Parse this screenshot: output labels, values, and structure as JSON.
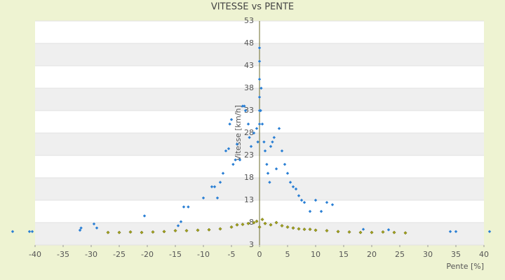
{
  "chart_data": {
    "type": "scatter",
    "title": "VITESSE vs PENTE",
    "xlabel": "Pente [%]",
    "ylabel": "Vitesse [km/h]",
    "xlim": [
      -40,
      40
    ],
    "xticks": [
      -40,
      -35,
      -30,
      -25,
      -20,
      -15,
      -10,
      -5,
      0,
      5,
      10,
      15,
      20,
      25,
      30,
      35,
      40
    ],
    "ylim": [
      3,
      53
    ],
    "yticks": [
      3,
      8,
      13,
      18,
      23,
      28,
      33,
      38,
      43,
      48,
      53
    ],
    "grid": true,
    "series": [
      {
        "color": "#2a7fd4",
        "x": [
          -44,
          -41,
          -40.5,
          -32,
          -31.8,
          -29.5,
          -29,
          -20.5,
          -14.5,
          -14,
          -13.5,
          -12.7,
          -10,
          -8.5,
          -8,
          -7.5,
          -7,
          -6.5,
          -6,
          -5.5,
          -5.3,
          -5,
          -4.7,
          -4.3,
          -4,
          -3.5,
          -3,
          -2.7,
          -2.5,
          -2,
          -1.8,
          -1.5,
          -1,
          -0.5,
          -0.3,
          0,
          0,
          0,
          0,
          0,
          0,
          0.2,
          0.3,
          0.5,
          0.8,
          1,
          1.3,
          1.5,
          1.8,
          2,
          2.3,
          2.6,
          3,
          3.5,
          4,
          4.5,
          5,
          5.5,
          6,
          6.5,
          7,
          7.5,
          8,
          9,
          10,
          11,
          12,
          13,
          18.5,
          23,
          34,
          35,
          41
        ],
        "y": [
          6,
          6,
          6,
          6.3,
          6.8,
          7.7,
          6.8,
          9.5,
          7.3,
          8.2,
          11.5,
          11.5,
          13.5,
          16,
          16,
          13.5,
          17,
          19,
          24,
          24.5,
          30,
          31,
          21,
          22,
          25.5,
          22,
          34,
          34,
          33,
          30,
          27,
          25,
          28,
          29,
          26,
          47,
          44,
          40,
          36,
          33,
          30,
          33,
          38,
          30,
          26,
          24,
          21,
          19,
          17,
          25,
          26,
          27,
          20,
          29,
          24,
          21,
          19,
          17,
          16,
          15.5,
          14,
          13,
          12.5,
          10.5,
          13,
          10.5,
          12.5,
          12,
          6.5,
          6.4,
          6,
          6,
          6
        ]
      },
      {
        "color": "#a3a31c",
        "x": [
          -27,
          -25,
          -23,
          -21,
          -19,
          -17,
          -15,
          -13,
          -11,
          -9,
          -7,
          -5,
          -4,
          -3,
          -2,
          -1,
          -0.5,
          0,
          0.5,
          1,
          2,
          3,
          4,
          5,
          6,
          7,
          8,
          9,
          10,
          12,
          14,
          16,
          18,
          20,
          22,
          24,
          26
        ],
        "y": [
          5.8,
          5.8,
          5.9,
          5.8,
          5.9,
          6,
          6.2,
          6.2,
          6.3,
          6.4,
          6.6,
          7,
          7.5,
          7.6,
          7.8,
          8,
          8.3,
          7,
          8.7,
          7.8,
          7.5,
          8,
          7.3,
          7,
          6.8,
          6.6,
          6.5,
          6.5,
          6.3,
          6.2,
          6,
          5.9,
          5.8,
          5.8,
          5.9,
          5.8,
          5.7
        ]
      }
    ]
  }
}
